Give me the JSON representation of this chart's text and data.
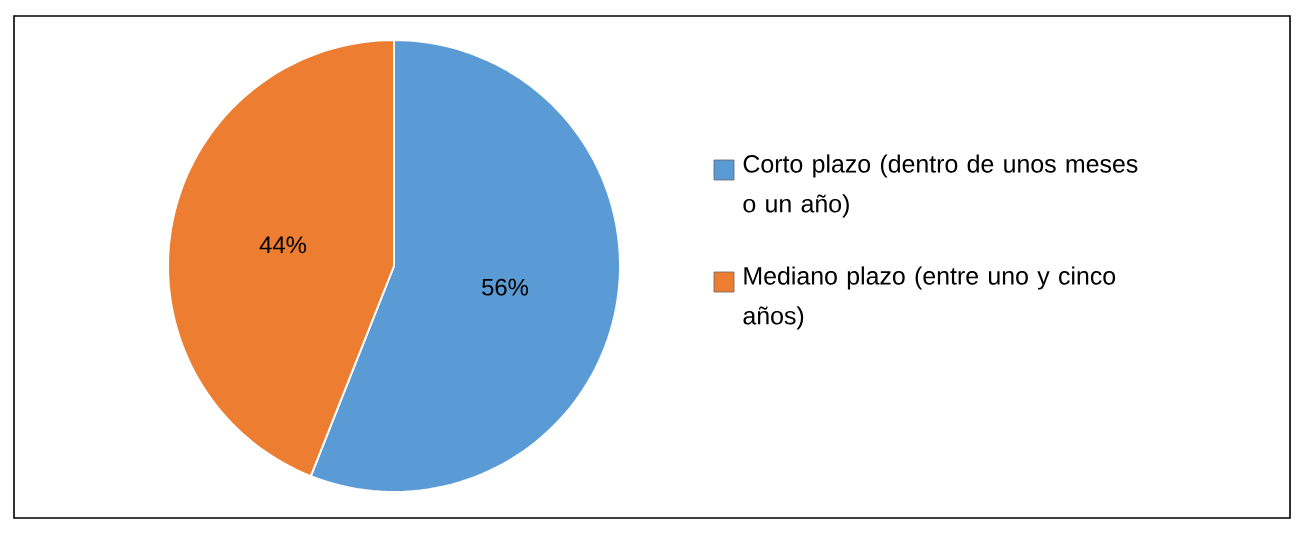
{
  "chart_data": {
    "type": "pie",
    "categories": [
      "Corto plazo (dentro de unos meses o un año)",
      "Mediano plazo (entre uno y cinco años)"
    ],
    "values": [
      56,
      44
    ],
    "colors": [
      "#5b9bd5",
      "#ed7d31"
    ],
    "value_labels": [
      "56%",
      "44%"
    ],
    "legend": "right"
  }
}
